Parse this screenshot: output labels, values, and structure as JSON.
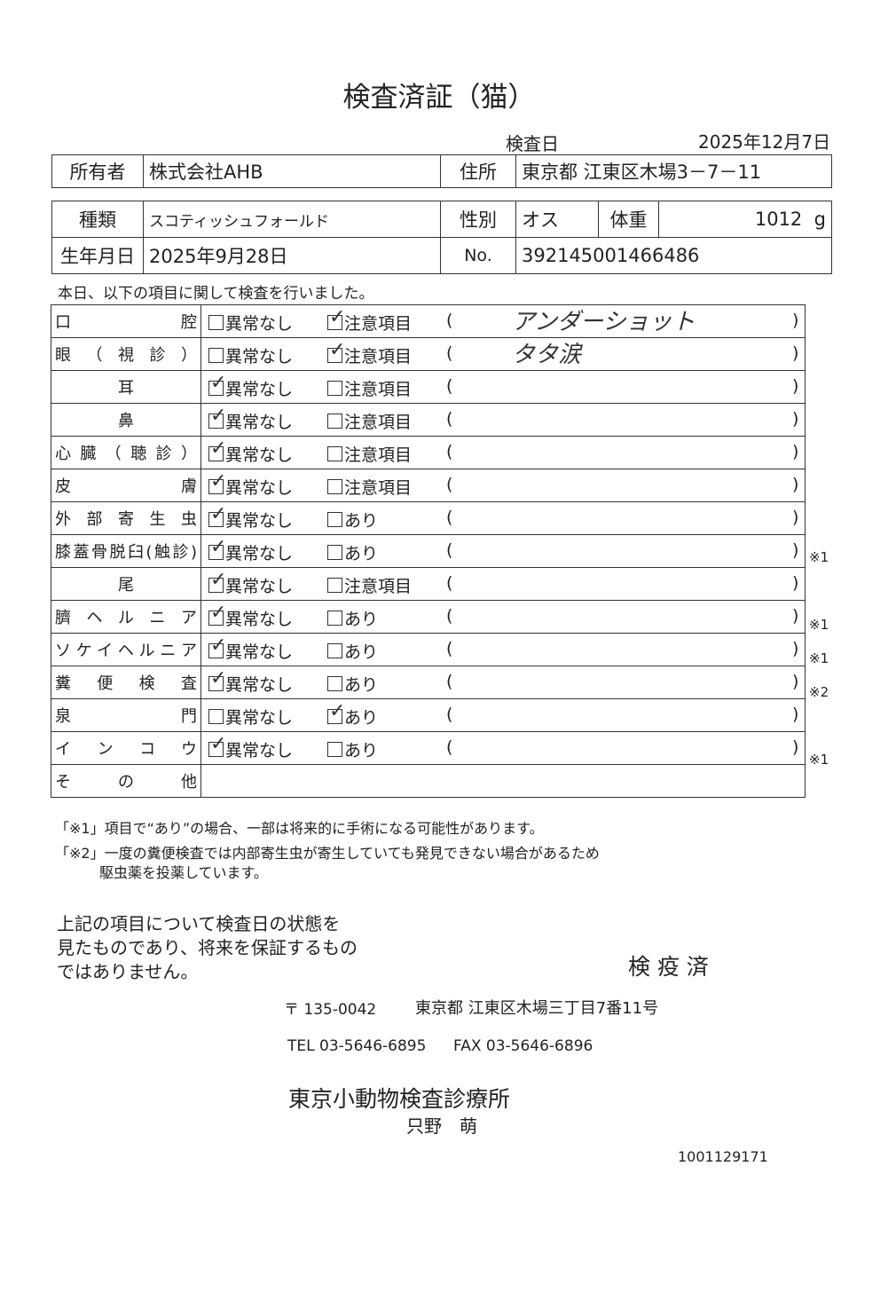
{
  "title": "検査済証（猫）",
  "exam_date_label": "検査日",
  "exam_date": "2025年12月7日",
  "owner": {
    "label": "所有者",
    "value": "株式会社AHB",
    "address_label": "住所",
    "address": "東京都 江東区木場3－7－11"
  },
  "pet": {
    "breed_label": "種類",
    "breed": "スコティッシュフォールド",
    "sex_label": "性別",
    "sex": "オス",
    "weight_label": "体重",
    "weight": "1012",
    "weight_unit": "g",
    "birth_label": "生年月日",
    "birth": "2025年9月28日",
    "no_label": "No.",
    "no": "392145001466486"
  },
  "intro": "本日、以下の項目に関して検査を行いました。",
  "exam_rows": [
    {
      "label": "口腔",
      "opt1": "異常なし",
      "opt2": "注意項目",
      "checked": 2,
      "note": "アンダーショット",
      "mark": ""
    },
    {
      "label": "眼（視診）",
      "opt1": "異常なし",
      "opt2": "注意項目",
      "checked": 2,
      "note": "タタ涙",
      "mark": ""
    },
    {
      "label": "耳",
      "center": true,
      "opt1": "異常なし",
      "opt2": "注意項目",
      "checked": 1,
      "note": "",
      "mark": ""
    },
    {
      "label": "鼻",
      "center": true,
      "opt1": "異常なし",
      "opt2": "注意項目",
      "checked": 1,
      "note": "",
      "mark": ""
    },
    {
      "label": "心臓（聴診）",
      "opt1": "異常なし",
      "opt2": "注意項目",
      "checked": 1,
      "note": "",
      "mark": ""
    },
    {
      "label": "皮膚",
      "opt1": "異常なし",
      "opt2": "注意項目",
      "checked": 1,
      "note": "",
      "mark": ""
    },
    {
      "label": "外部寄生虫",
      "opt1": "異常なし",
      "opt2": "あり",
      "checked": 1,
      "note": "",
      "mark": ""
    },
    {
      "label": "膝蓋骨脱臼(触診)",
      "opt1": "異常なし",
      "opt2": "あり",
      "checked": 1,
      "note": "",
      "mark": "※1"
    },
    {
      "label": "尾",
      "center": true,
      "opt1": "異常なし",
      "opt2": "注意項目",
      "checked": 1,
      "note": "",
      "mark": ""
    },
    {
      "label": "臍ヘルニア",
      "opt1": "異常なし",
      "opt2": "あり",
      "checked": 1,
      "note": "",
      "mark": "※1"
    },
    {
      "label": "ソケイヘルニア",
      "opt1": "異常なし",
      "opt2": "あり",
      "checked": 1,
      "note": "",
      "mark": "※1"
    },
    {
      "label": "糞便検査",
      "opt1": "異常なし",
      "opt2": "あり",
      "checked": 1,
      "note": "",
      "mark": "※2"
    },
    {
      "label": "泉門",
      "opt1": "異常なし",
      "opt2": "あり",
      "checked": 2,
      "note": "",
      "mark": ""
    },
    {
      "label": "インコウ",
      "opt1": "異常なし",
      "opt2": "あり",
      "checked": 1,
      "note": "",
      "mark": "※1"
    }
  ],
  "other_label": "その他",
  "footnote1": "「※1」項目で“あり”の場合、一部は将来的に手術になる可能性があります。",
  "footnote2a": "「※2」一度の糞便検査では内部寄生虫が寄生していても発見できない場合があるため",
  "footnote2b": "駆虫薬を投薬しています。",
  "disclaimer": [
    "上記の項目について検査日の状態を",
    "見たものであり、将来を保証するもの",
    "ではありません。"
  ],
  "stamp": "検 疫 済",
  "clinic": {
    "postal": "〒 135-0042",
    "address": "東京都 江東区木場三丁目7番11号",
    "tel": "TEL 03-5646-6895",
    "fax": "FAX 03-5646-6896",
    "name": "東京小動物検査診療所",
    "person": "只野　萌"
  },
  "doc_number": "1001129171"
}
